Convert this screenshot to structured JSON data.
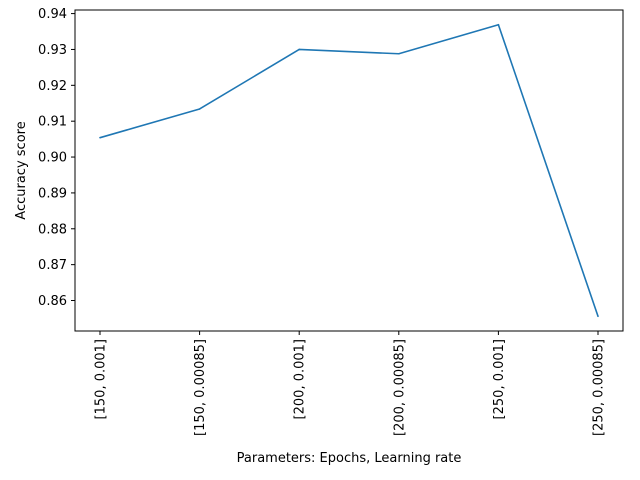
{
  "chart_data": {
    "type": "line",
    "title": "",
    "xlabel": "Parameters: Epochs, Learning rate",
    "ylabel": "Accuracy score",
    "categories": [
      "[150, 0.001]",
      "[150, 0.00085]",
      "[200, 0.001]",
      "[200, 0.00085]",
      "[250, 0.001]",
      "[250, 0.00085]"
    ],
    "series": [
      {
        "values": [
          0.9054,
          0.9134,
          0.93,
          0.9288,
          0.9369,
          0.8556
        ],
        "color": "#1f77b4"
      }
    ],
    "ylim": [
      0.8515,
      0.941
    ],
    "yticks": [
      {
        "value": 0.86,
        "label": "0.86"
      },
      {
        "value": 0.87,
        "label": "0.87"
      },
      {
        "value": 0.88,
        "label": "0.88"
      },
      {
        "value": 0.89,
        "label": "0.89"
      },
      {
        "value": 0.9,
        "label": "0.90"
      },
      {
        "value": 0.91,
        "label": "0.91"
      },
      {
        "value": 0.92,
        "label": "0.92"
      },
      {
        "value": 0.93,
        "label": "0.93"
      },
      {
        "value": 0.94,
        "label": "0.94"
      }
    ],
    "grid": false,
    "legend": "none"
  }
}
